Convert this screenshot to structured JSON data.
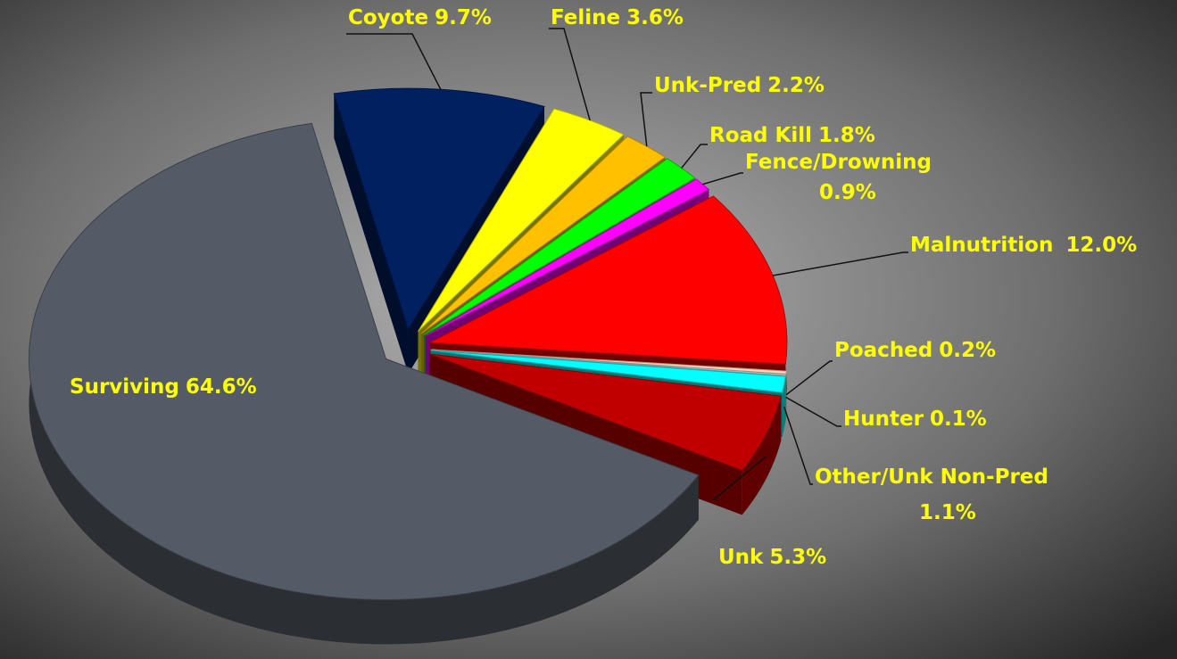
{
  "chart_data": {
    "type": "pie",
    "categories": [
      "Coyote",
      "Feline",
      "Unk-Pred",
      "Road Kill",
      "Fence/Drowning",
      "Malnutrition",
      "Poached",
      "Hunter",
      "Other/Unk Non-Pred",
      "Unk",
      "Surviving"
    ],
    "values": [
      9.7,
      3.6,
      2.2,
      1.8,
      0.9,
      12.0,
      0.2,
      0.1,
      1.1,
      5.3,
      64.6
    ],
    "value_labels": [
      "9.7%",
      "3.6%",
      "2.2%",
      "1.8%",
      "0.9%",
      "12.0%",
      "0.2%",
      "0.1%",
      "1.1%",
      "5.3%",
      "64.6%"
    ],
    "colors": [
      "#002060",
      "#ffff00",
      "#ffc000",
      "#00ff00",
      "#ff00ff",
      "#ff0000",
      "#ffd8b8",
      "#d0d0d0",
      "#00ffff",
      "#c00000",
      "#555b66"
    ]
  }
}
